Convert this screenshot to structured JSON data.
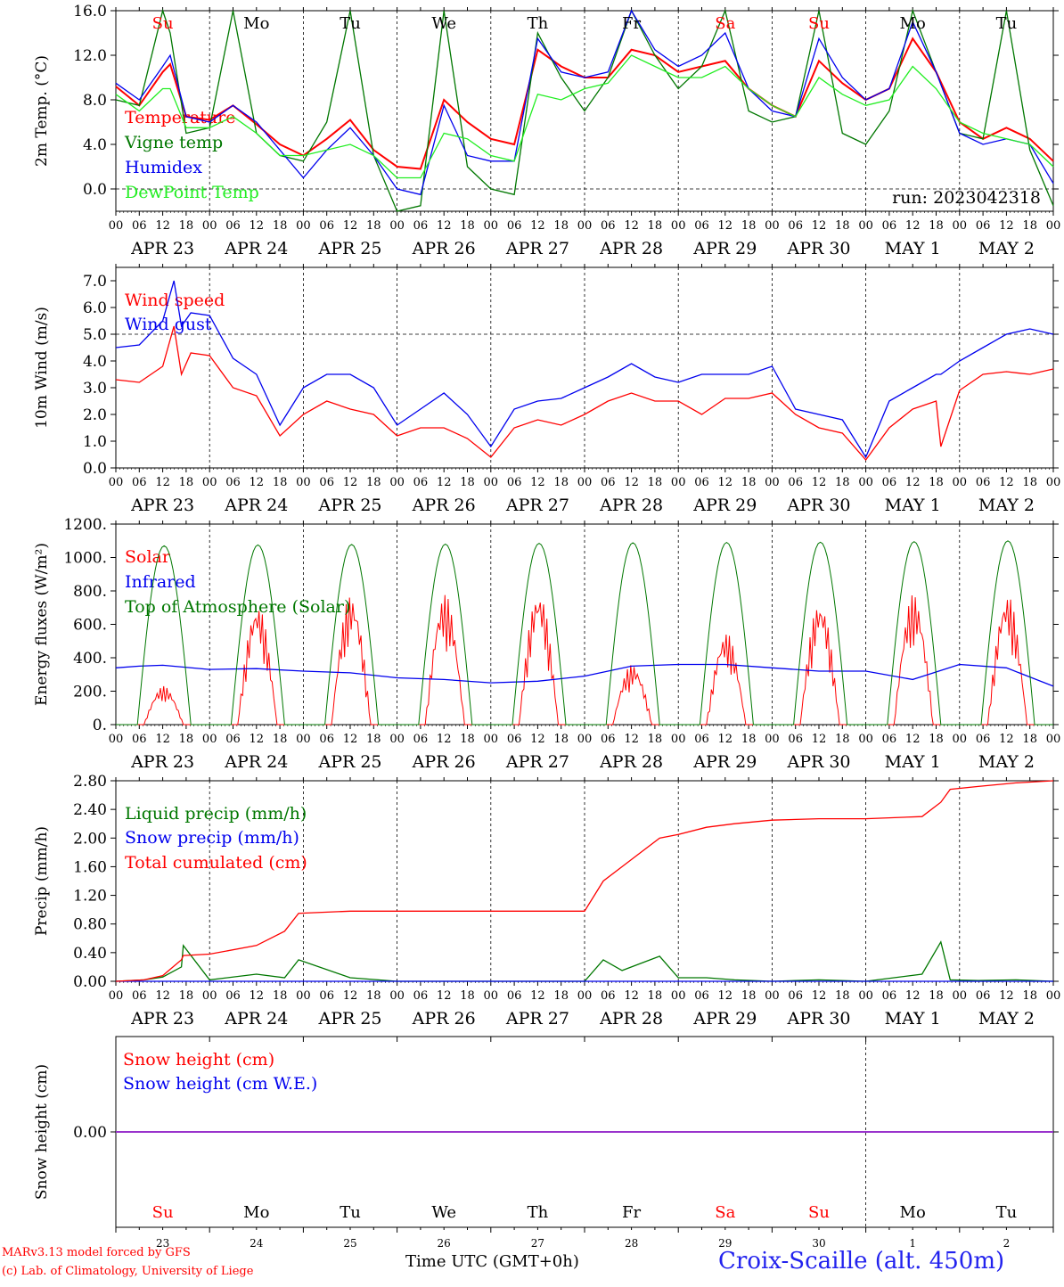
{
  "run_label": "run: 2023042318",
  "footer": {
    "model_line": "MARv3.13 model forced by GFS",
    "copyright_line": "(c) Lab. of Climatology, University of Liege",
    "time_axis_label": "Time UTC (GMT+0h)",
    "station": "Croix-Scaille (alt. 450m)"
  },
  "colors": {
    "red": "#ff0000",
    "green": "#007700",
    "blue": "#0000ee",
    "lime": "#22ee22",
    "purple": "#9933cc"
  },
  "hour_ticks": [
    "00",
    "06",
    "12",
    "18"
  ],
  "date_labels": [
    "APR 23",
    "APR 24",
    "APR 25",
    "APR 26",
    "APR 27",
    "APR 28",
    "APR 29",
    "APR 30",
    "MAY  1",
    "MAY  2"
  ],
  "weekday_labels": [
    "Su",
    "Mo",
    "Tu",
    "We",
    "Th",
    "Fr",
    "Sa",
    "Su",
    "Mo",
    "Tu"
  ],
  "weekday_colors": [
    "#ff0000",
    "#000000",
    "#000000",
    "#000000",
    "#000000",
    "#000000",
    "#ff0000",
    "#ff0000",
    "#000000",
    "#000000"
  ],
  "day_numbers": [
    "23",
    "24",
    "25",
    "26",
    "27",
    "28",
    "29",
    "30",
    "1",
    "2"
  ],
  "chart_data": [
    {
      "type": "line",
      "ylabel": "2m Temp. (°C)",
      "ylim": [
        -2.0,
        16.0
      ],
      "yticks": [
        "0.0",
        "4.0",
        "8.0",
        "12.0",
        "16.0"
      ],
      "ytick_values": [
        0,
        4,
        8,
        12,
        16
      ],
      "dashed_hlines": [
        0
      ],
      "x_days": [
        0,
        0.25,
        0.5,
        0.58,
        0.75,
        1,
        1.25,
        1.5,
        1.75,
        2,
        2.25,
        2.5,
        2.75,
        3,
        3.25,
        3.5,
        3.75,
        4,
        4.25,
        4.5,
        4.75,
        5,
        5.25,
        5.5,
        5.75,
        6,
        6.25,
        6.5,
        6.75,
        7,
        7.25,
        7.5,
        7.75,
        8,
        8.25,
        8.5,
        8.75,
        9,
        9.25,
        9.5,
        9.75,
        10
      ],
      "series": [
        {
          "name": "Temperature",
          "color": "#ff0000",
          "values": [
            9.2,
            7.5,
            10.5,
            11.2,
            6.5,
            6.2,
            7.5,
            5.8,
            4.0,
            3.0,
            4.5,
            6.2,
            3.5,
            2.0,
            1.8,
            8.0,
            6.0,
            4.5,
            4.0,
            12.5,
            11.0,
            10.0,
            10.0,
            12.5,
            12.0,
            10.5,
            11.0,
            11.5,
            9.0,
            7.5,
            6.5,
            11.5,
            9.5,
            8.0,
            9.0,
            13.5,
            10.5,
            6.0,
            4.5,
            5.5,
            4.5,
            2.5
          ]
        },
        {
          "name": "Vigne temp",
          "color": "#007700",
          "values": [
            8.0,
            7.5,
            16.0,
            14.0,
            5.0,
            5.5,
            16.0,
            5.0,
            3.0,
            2.5,
            6.0,
            16.0,
            3.0,
            -2.0,
            -1.5,
            16.0,
            2.0,
            0.0,
            -0.5,
            14.0,
            10.0,
            7.0,
            10.0,
            16.0,
            12.0,
            9.0,
            11.0,
            16.0,
            7.0,
            6.0,
            6.5,
            16.0,
            5.0,
            4.0,
            7.0,
            16.0,
            10.5,
            5.0,
            4.5,
            16.0,
            3.5,
            -1.5
          ]
        },
        {
          "name": "Humidex",
          "color": "#0000ee",
          "values": [
            9.5,
            8.0,
            11.0,
            12.0,
            6.5,
            6.0,
            7.5,
            6.0,
            3.5,
            1.0,
            3.5,
            5.5,
            3.0,
            0.0,
            -0.5,
            7.5,
            3.0,
            2.5,
            2.5,
            13.5,
            10.5,
            10.0,
            10.5,
            16.0,
            12.5,
            11.0,
            12.0,
            14.0,
            9.0,
            7.0,
            6.5,
            13.5,
            10.0,
            8.0,
            9.0,
            15.0,
            10.5,
            5.0,
            4.0,
            4.5,
            4.0,
            0.5
          ]
        },
        {
          "name": "DewPoint Temp",
          "color": "#22ee22",
          "values": [
            8.5,
            7.0,
            9.0,
            9.0,
            5.5,
            5.5,
            6.5,
            5.0,
            3.0,
            3.0,
            3.5,
            4.0,
            3.0,
            1.0,
            1.0,
            5.0,
            4.5,
            3.0,
            2.5,
            8.5,
            8.0,
            9.0,
            9.5,
            12.0,
            11.0,
            10.0,
            10.0,
            11.0,
            9.0,
            7.5,
            6.5,
            10.0,
            8.5,
            7.5,
            8.0,
            11.0,
            9.0,
            6.0,
            5.0,
            4.5,
            4.0,
            2.0
          ]
        }
      ]
    },
    {
      "type": "line",
      "ylabel": "10m Wind (m/s)",
      "ylim": [
        0.0,
        7.5
      ],
      "yticks": [
        "0.0",
        "1.0",
        "2.0",
        "3.0",
        "4.0",
        "5.0",
        "6.0",
        "7.0"
      ],
      "ytick_values": [
        0,
        1,
        2,
        3,
        4,
        5,
        6,
        7
      ],
      "dashed_hlines": [
        5
      ],
      "x_days": [
        0,
        0.25,
        0.5,
        0.62,
        0.7,
        0.8,
        1,
        1.25,
        1.5,
        1.75,
        2,
        2.25,
        2.5,
        2.75,
        3,
        3.25,
        3.5,
        3.75,
        4,
        4.25,
        4.5,
        4.75,
        5,
        5.25,
        5.5,
        5.75,
        6,
        6.25,
        6.5,
        6.75,
        7,
        7.25,
        7.5,
        7.75,
        8,
        8.25,
        8.5,
        8.75,
        8.8,
        9,
        9.25,
        9.5,
        9.75,
        10
      ],
      "series": [
        {
          "name": "Wind speed",
          "color": "#ff0000",
          "values": [
            3.3,
            3.2,
            3.8,
            5.3,
            3.5,
            4.3,
            4.2,
            3.0,
            2.7,
            1.2,
            2.0,
            2.5,
            2.2,
            2.0,
            1.2,
            1.5,
            1.5,
            1.1,
            0.4,
            1.5,
            1.8,
            1.6,
            2.0,
            2.5,
            2.8,
            2.5,
            2.5,
            2.0,
            2.6,
            2.6,
            2.8,
            2.0,
            1.5,
            1.3,
            0.3,
            1.5,
            2.2,
            2.5,
            0.8,
            2.9,
            3.5,
            3.6,
            3.5,
            3.7
          ]
        },
        {
          "name": "Wind gust",
          "color": "#0000ee",
          "values": [
            4.5,
            4.6,
            5.5,
            7.0,
            5.3,
            5.8,
            5.7,
            4.1,
            3.5,
            1.6,
            3.0,
            3.5,
            3.5,
            3.0,
            1.6,
            2.2,
            2.8,
            2.0,
            0.8,
            2.2,
            2.5,
            2.6,
            3.0,
            3.4,
            3.9,
            3.4,
            3.2,
            3.5,
            3.5,
            3.5,
            3.8,
            2.2,
            2.0,
            1.8,
            0.4,
            2.5,
            3.0,
            3.5,
            3.5,
            4.0,
            4.5,
            5.0,
            5.2,
            5.0
          ]
        }
      ]
    },
    {
      "type": "line",
      "ylabel": "Energy fluxes (W/m²)",
      "ylim": [
        0,
        1200
      ],
      "yticks": [
        "0.",
        "200.",
        "400.",
        "600.",
        "800.",
        "1000.",
        "1200."
      ],
      "ytick_values": [
        0,
        200,
        400,
        600,
        800,
        1000,
        1200
      ],
      "x_days": [
        0,
        0.25,
        0.5,
        1,
        1.5,
        2,
        2.5,
        3,
        3.5,
        4,
        4.5,
        5,
        5.5,
        6,
        6.5,
        7,
        7.5,
        8,
        8.5,
        9,
        9.5,
        10
      ],
      "series": [
        {
          "name": "Solar",
          "color": "#ff0000",
          "daily_peaks": [
            230,
            720,
            780,
            780,
            800,
            360,
            550,
            740,
            780,
            780
          ]
        },
        {
          "name": "Infrared",
          "color": "#0000ee",
          "values": [
            340,
            350,
            355,
            330,
            335,
            320,
            310,
            280,
            270,
            250,
            260,
            290,
            350,
            360,
            360,
            340,
            320,
            320,
            270,
            360,
            340,
            230
          ]
        },
        {
          "name": "Top of Atmosphere (Solar)",
          "color": "#007700",
          "daily_peaks": [
            1070,
            1075,
            1078,
            1080,
            1085,
            1088,
            1090,
            1092,
            1095,
            1100
          ]
        }
      ]
    },
    {
      "type": "line",
      "ylabel": "Precip (mm/h)",
      "ylim": [
        0.0,
        2.8
      ],
      "yticks": [
        "0.00",
        "0.40",
        "0.80",
        "1.20",
        "1.60",
        "2.00",
        "2.40",
        "2.80"
      ],
      "ytick_values": [
        0,
        0.4,
        0.8,
        1.2,
        1.6,
        2.0,
        2.4,
        2.8
      ],
      "x_days": [
        0,
        0.3,
        0.5,
        0.7,
        0.72,
        1.0,
        1.5,
        1.8,
        1.95,
        2.5,
        3,
        4,
        5,
        5.2,
        5.4,
        5.6,
        5.8,
        6.0,
        6.3,
        6.6,
        7,
        7.5,
        8,
        8.6,
        8.8,
        8.9,
        9.2,
        9.6,
        10
      ],
      "series": [
        {
          "name": "Liquid precip (mm/h)",
          "color": "#007700",
          "values": [
            0,
            0.02,
            0.06,
            0.2,
            0.5,
            0.02,
            0.1,
            0.05,
            0.3,
            0.05,
            0,
            0,
            0,
            0.3,
            0.15,
            0.25,
            0.35,
            0.05,
            0.05,
            0.02,
            0,
            0.02,
            0,
            0.1,
            0.55,
            0.02,
            0.01,
            0.02,
            0
          ]
        },
        {
          "name": "Snow precip (mm/h)",
          "color": "#0000ee",
          "values": [
            0,
            0,
            0,
            0,
            0,
            0,
            0,
            0,
            0,
            0,
            0,
            0,
            0,
            0,
            0,
            0,
            0,
            0,
            0,
            0,
            0,
            0,
            0,
            0,
            0,
            0,
            0,
            0,
            0
          ]
        },
        {
          "name": "Total cumulated (cm)",
          "color": "#ff0000",
          "values": [
            0,
            0.02,
            0.08,
            0.3,
            0.36,
            0.38,
            0.5,
            0.7,
            0.95,
            0.98,
            0.98,
            0.98,
            0.98,
            1.4,
            1.6,
            1.8,
            2.0,
            2.05,
            2.15,
            2.2,
            2.25,
            2.27,
            2.27,
            2.3,
            2.5,
            2.68,
            2.72,
            2.77,
            2.8
          ]
        }
      ]
    },
    {
      "type": "line",
      "ylabel": "Snow height (cm)",
      "ylim": [
        -1.0,
        1.0
      ],
      "yticks": [
        "0.00"
      ],
      "ytick_values": [
        0
      ],
      "x_days": [
        0,
        10
      ],
      "series": [
        {
          "name": "Snow height (cm)",
          "color": "#ff0000",
          "values": [
            0,
            0
          ]
        },
        {
          "name": "Snow height (cm W.E.)",
          "color": "#0000ee",
          "values": [
            0,
            0
          ]
        }
      ]
    }
  ]
}
